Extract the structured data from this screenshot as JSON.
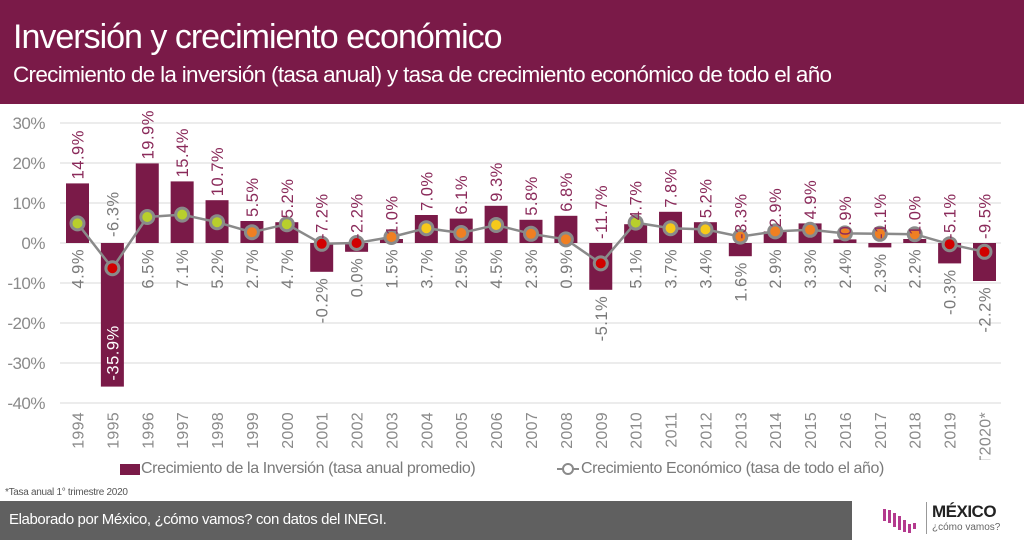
{
  "header": {
    "title": "Inversión y crecimiento económico",
    "subtitle": "Crecimiento de la inversión (tasa anual) y tasa de crecimiento económico de todo el año"
  },
  "chart_data": {
    "type": "bar",
    "title": "Inversión y crecimiento económico",
    "subtitle": "Crecimiento de la inversión (tasa anual) y tasa de crecimiento económico de todo el año",
    "xlabel": "",
    "ylabel": "",
    "ylim": [
      -40,
      30
    ],
    "yticks": [
      30,
      20,
      10,
      0,
      -10,
      -20,
      -30,
      -40
    ],
    "ytick_labels": [
      "30%",
      "20%",
      "10%",
      "0%",
      "-10%",
      "-20%",
      "-30%",
      "-40%"
    ],
    "grid": true,
    "legend_position": "bottom",
    "categories": [
      "1994",
      "1995",
      "1996",
      "1997",
      "1998",
      "1999",
      "2000",
      "2001",
      "2002",
      "2003",
      "2004",
      "2005",
      "2006",
      "2007",
      "2008",
      "2009",
      "2010",
      "2011",
      "2012",
      "2013",
      "2014",
      "2015",
      "2016",
      "2017",
      "2018",
      "2019",
      "1T2020*"
    ],
    "series": [
      {
        "name": "Crecimiento de la Inversión (tasa anual promedio)",
        "type": "bar",
        "color": "#7a1a48",
        "values": [
          14.9,
          -35.9,
          19.9,
          15.4,
          10.7,
          5.5,
          5.2,
          -7.2,
          -2.2,
          1.0,
          7.0,
          6.1,
          9.3,
          5.8,
          6.8,
          -11.7,
          4.7,
          7.8,
          5.2,
          -3.3,
          2.9,
          4.9,
          0.9,
          -1.1,
          1.0,
          -5.1,
          -9.5
        ]
      },
      {
        "name": "Crecimiento Económico (tasa de todo el año)",
        "type": "line",
        "color": "#8a8a8a",
        "values": [
          4.9,
          -6.3,
          6.5,
          7.1,
          5.2,
          2.7,
          4.7,
          -0.2,
          0.0,
          1.5,
          3.7,
          2.5,
          4.5,
          2.3,
          0.9,
          -5.1,
          5.1,
          3.7,
          3.4,
          1.6,
          2.9,
          3.3,
          2.4,
          2.3,
          2.2,
          -0.3,
          -2.2
        ],
        "marker_colors": [
          "green",
          "red",
          "green",
          "green",
          "green",
          "orange",
          "green",
          "red",
          "red",
          "orange",
          "yellow",
          "orange",
          "yellow",
          "orange",
          "orange",
          "red",
          "green",
          "yellow",
          "yellow",
          "orange",
          "orange",
          "orange",
          "orange",
          "orange",
          "orange",
          "red",
          "red"
        ]
      }
    ],
    "marker_palette": {
      "green": "#b8cf2c",
      "yellow": "#f6c91a",
      "orange": "#f07f22",
      "red": "#d10000"
    },
    "label_colors": {
      "investment": "#8a2a5a",
      "investment_inside": "#ffffff",
      "economic": "#7a7a7a"
    },
    "legend": [
      {
        "label": "Crecimiento de la Inversión (tasa anual promedio)",
        "marker": "square"
      },
      {
        "label": "Crecimiento Económico (tasa de todo el año)",
        "marker": "line-circle"
      }
    ]
  },
  "legend": {
    "investment": "Crecimiento de la Inversión (tasa anual promedio)",
    "economic": "Crecimiento Económico (tasa de todo el año)"
  },
  "footnote": "*Tasa anual 1° trimestre 2020",
  "footer": {
    "credit": "Elaborado por México, ¿cómo vamos? con datos del INEGI."
  },
  "logo": {
    "name": "MÉXICO",
    "tagline": "¿cómo vamos?"
  }
}
